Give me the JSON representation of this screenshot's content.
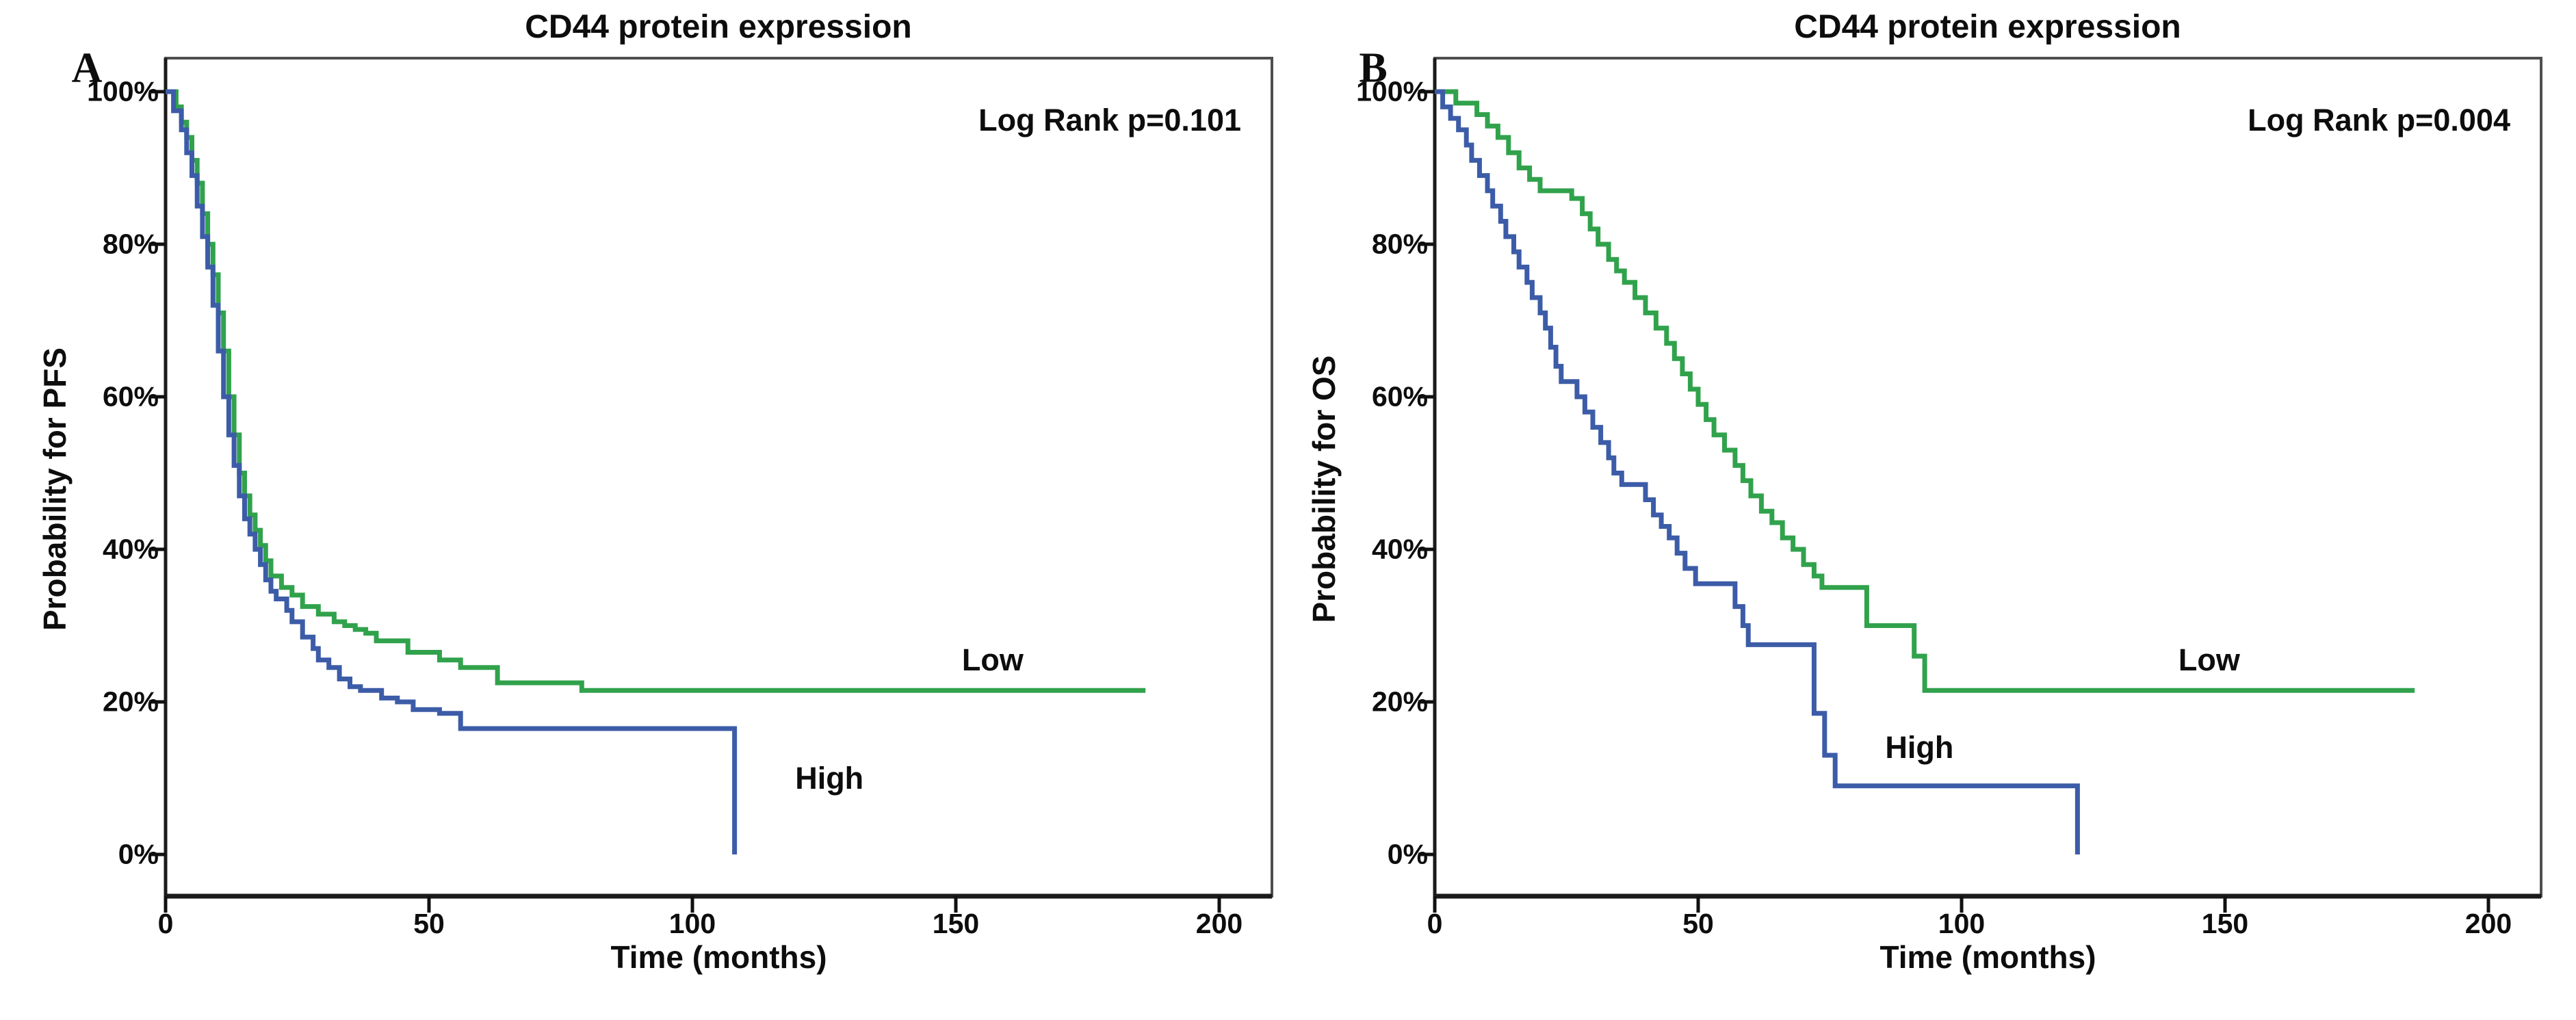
{
  "figure_background": "#ffffff",
  "text_color": "#0d0d0d",
  "axis_box_color": "#4f4f4f",
  "chart_data": [
    {
      "type": "line",
      "subtype": "kaplan-meier-step",
      "panel_letter": "A",
      "title": "CD44 protein expression",
      "annotation": "Log Rank p=0.101",
      "xlabel": "Time (months)",
      "ylabel": "Probability for PFS",
      "xlim": [
        0,
        210
      ],
      "ylim": [
        0,
        100
      ],
      "x_ticks": [
        0,
        50,
        100,
        150,
        200
      ],
      "x_tick_labels": [
        "0",
        "50",
        "100",
        "150",
        "200"
      ],
      "y_ticks_percent": [
        0,
        20,
        40,
        60,
        80,
        100
      ],
      "y_tick_labels": [
        "0%",
        "20%",
        "40%",
        "60%",
        "80%",
        "100%"
      ],
      "grid": false,
      "legend_position": "inline-labels",
      "series": [
        {
          "name": "Low",
          "color": "#31a24c",
          "label_pos": {
            "t": 157,
            "p": 25.5
          },
          "points": [
            [
              0,
              100
            ],
            [
              2,
              98
            ],
            [
              3,
              96
            ],
            [
              4,
              94
            ],
            [
              5,
              91
            ],
            [
              6,
              88
            ],
            [
              7,
              84
            ],
            [
              8,
              80
            ],
            [
              9,
              76
            ],
            [
              10,
              71
            ],
            [
              11,
              66
            ],
            [
              12,
              60
            ],
            [
              13,
              55
            ],
            [
              14,
              50
            ],
            [
              15,
              47
            ],
            [
              16,
              44.5
            ],
            [
              17,
              42.5
            ],
            [
              18,
              40.5
            ],
            [
              19,
              38.5
            ],
            [
              20,
              36.5
            ],
            [
              22,
              35
            ],
            [
              24,
              34
            ],
            [
              26,
              32.5
            ],
            [
              29,
              31.5
            ],
            [
              32,
              30.5
            ],
            [
              34,
              30
            ],
            [
              36,
              29.5
            ],
            [
              38,
              29
            ],
            [
              40,
              28
            ],
            [
              46,
              26.5
            ],
            [
              52,
              25.5
            ],
            [
              56,
              24.5
            ],
            [
              63,
              22.5
            ],
            [
              79,
              21.5
            ],
            [
              186,
              21.5
            ]
          ]
        },
        {
          "name": "High",
          "color": "#3c5ca8",
          "label_pos": {
            "t": 126,
            "p": 10
          },
          "points": [
            [
              0,
              100
            ],
            [
              1.5,
              97.5
            ],
            [
              3,
              95
            ],
            [
              4,
              92
            ],
            [
              5,
              89
            ],
            [
              6,
              85
            ],
            [
              7,
              81
            ],
            [
              8,
              77
            ],
            [
              9,
              72
            ],
            [
              10,
              66
            ],
            [
              11,
              60
            ],
            [
              12,
              55
            ],
            [
              13,
              51
            ],
            [
              14,
              47
            ],
            [
              15,
              44
            ],
            [
              16,
              42
            ],
            [
              17,
              40
            ],
            [
              18,
              38
            ],
            [
              19,
              36
            ],
            [
              20,
              34.5
            ],
            [
              21,
              33.5
            ],
            [
              23,
              32
            ],
            [
              24,
              30.5
            ],
            [
              26,
              28.5
            ],
            [
              28,
              27
            ],
            [
              29,
              25.5
            ],
            [
              31,
              24.5
            ],
            [
              33,
              23
            ],
            [
              35,
              22
            ],
            [
              37,
              21.5
            ],
            [
              41,
              20.5
            ],
            [
              44,
              20
            ],
            [
              47,
              19
            ],
            [
              52,
              18.5
            ],
            [
              56,
              16.5
            ],
            [
              108,
              16.5
            ],
            [
              108,
              0
            ]
          ]
        }
      ]
    },
    {
      "type": "line",
      "subtype": "kaplan-meier-step",
      "panel_letter": "B",
      "title": "CD44 protein expression",
      "annotation": "Log Rank p=0.004",
      "xlabel": "Time (months)",
      "ylabel": "Probability for OS",
      "xlim": [
        0,
        210
      ],
      "ylim": [
        0,
        100
      ],
      "x_ticks": [
        0,
        50,
        100,
        150,
        200
      ],
      "x_tick_labels": [
        "0",
        "50",
        "100",
        "150",
        "200"
      ],
      "y_ticks_percent": [
        0,
        20,
        40,
        60,
        80,
        100
      ],
      "y_tick_labels": [
        "0%",
        "20%",
        "40%",
        "60%",
        "80%",
        "100%"
      ],
      "grid": false,
      "legend_position": "inline-labels",
      "series": [
        {
          "name": "Low",
          "color": "#31a24c",
          "label_pos": {
            "t": 147,
            "p": 25.5
          },
          "points": [
            [
              0,
              100
            ],
            [
              4,
              98.5
            ],
            [
              8,
              97
            ],
            [
              10,
              95.5
            ],
            [
              12,
              94
            ],
            [
              14,
              92
            ],
            [
              16,
              90
            ],
            [
              18,
              88.5
            ],
            [
              20,
              87
            ],
            [
              26,
              86
            ],
            [
              28,
              84
            ],
            [
              29.5,
              82
            ],
            [
              31,
              80
            ],
            [
              33,
              78
            ],
            [
              34.5,
              76.5
            ],
            [
              36,
              75
            ],
            [
              38,
              73
            ],
            [
              40,
              71
            ],
            [
              42,
              69
            ],
            [
              44,
              67
            ],
            [
              45.5,
              65
            ],
            [
              47,
              63
            ],
            [
              48.5,
              61
            ],
            [
              50,
              59
            ],
            [
              51.5,
              57
            ],
            [
              53,
              55
            ],
            [
              55,
              53
            ],
            [
              57,
              51
            ],
            [
              58.5,
              49
            ],
            [
              60,
              47
            ],
            [
              62,
              45
            ],
            [
              64,
              43.5
            ],
            [
              66,
              41.5
            ],
            [
              68,
              40
            ],
            [
              70,
              38
            ],
            [
              72,
              36.5
            ],
            [
              73.5,
              35
            ],
            [
              82,
              30
            ],
            [
              91,
              26
            ],
            [
              93,
              21.5
            ],
            [
              186,
              21.5
            ]
          ]
        },
        {
          "name": "High",
          "color": "#3c5ca8",
          "label_pos": {
            "t": 92,
            "p": 14
          },
          "points": [
            [
              0,
              100
            ],
            [
              1.5,
              98
            ],
            [
              3,
              96.5
            ],
            [
              4.5,
              95
            ],
            [
              6,
              93
            ],
            [
              7,
              91
            ],
            [
              8.5,
              89
            ],
            [
              10,
              87
            ],
            [
              11,
              85
            ],
            [
              12.5,
              83
            ],
            [
              13.5,
              81
            ],
            [
              15,
              79
            ],
            [
              16,
              77
            ],
            [
              17.5,
              75
            ],
            [
              18.5,
              73
            ],
            [
              20,
              71
            ],
            [
              21,
              69
            ],
            [
              22,
              66.5
            ],
            [
              23,
              64
            ],
            [
              24,
              62
            ],
            [
              27,
              60
            ],
            [
              28.5,
              58
            ],
            [
              30,
              56
            ],
            [
              31.5,
              54
            ],
            [
              33,
              52
            ],
            [
              34,
              50
            ],
            [
              35.5,
              48.5
            ],
            [
              40,
              46.5
            ],
            [
              41.5,
              44.5
            ],
            [
              43,
              43
            ],
            [
              44.5,
              41.5
            ],
            [
              46,
              39.5
            ],
            [
              47.5,
              37.5
            ],
            [
              49.5,
              35.5
            ],
            [
              57,
              32.5
            ],
            [
              58.5,
              30
            ],
            [
              59.5,
              27.5
            ],
            [
              72,
              18.5
            ],
            [
              74,
              13
            ],
            [
              76,
              9
            ],
            [
              122,
              9
            ],
            [
              122,
              0
            ]
          ]
        }
      ]
    }
  ]
}
